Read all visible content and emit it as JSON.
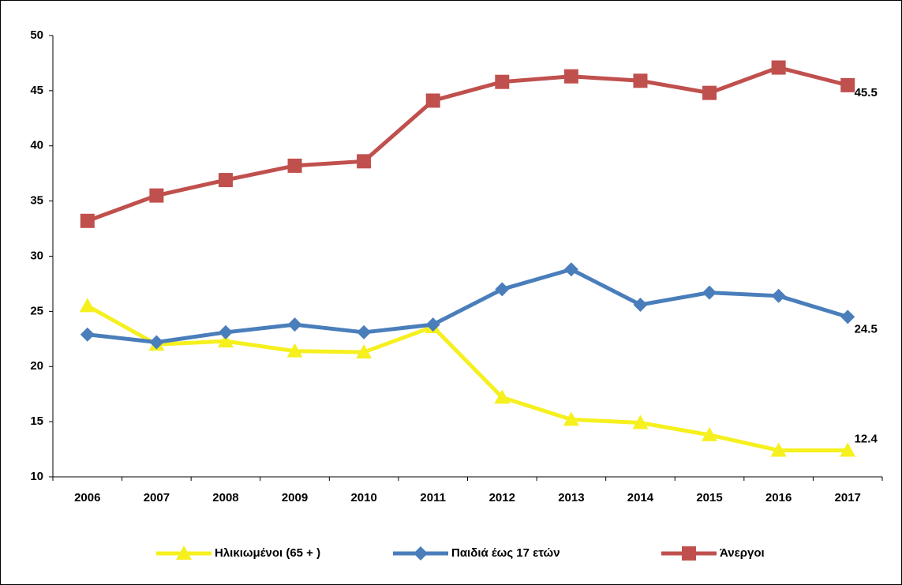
{
  "chart_data": {
    "type": "line",
    "categories": [
      "2006",
      "2007",
      "2008",
      "2009",
      "2010",
      "2011",
      "2012",
      "2013",
      "2014",
      "2015",
      "2016",
      "2017"
    ],
    "series": [
      {
        "name": "Ηλικιωμένοι (65 + )",
        "color": "#f5f01e",
        "marker": "triangle",
        "values": [
          25.5,
          22.0,
          22.3,
          21.4,
          21.3,
          23.6,
          17.2,
          15.2,
          14.9,
          13.8,
          12.4,
          12.4
        ]
      },
      {
        "name": "Παιδιά έως 17 ετών",
        "color": "#4a7ebb",
        "marker": "diamond",
        "values": [
          22.9,
          22.2,
          23.1,
          23.8,
          23.1,
          23.8,
          27.0,
          28.8,
          25.6,
          26.7,
          26.4,
          24.5
        ]
      },
      {
        "name": "Άνεργοι",
        "color": "#c0504d",
        "marker": "square",
        "values": [
          33.2,
          35.5,
          36.9,
          38.2,
          38.6,
          44.1,
          45.8,
          46.3,
          45.9,
          44.8,
          47.1,
          45.5
        ]
      }
    ],
    "data_labels": "last",
    "ylim": [
      10,
      50
    ],
    "yticks": [
      10,
      15,
      20,
      25,
      30,
      35,
      40,
      45,
      50
    ],
    "grid": false,
    "legend": "bottom"
  }
}
